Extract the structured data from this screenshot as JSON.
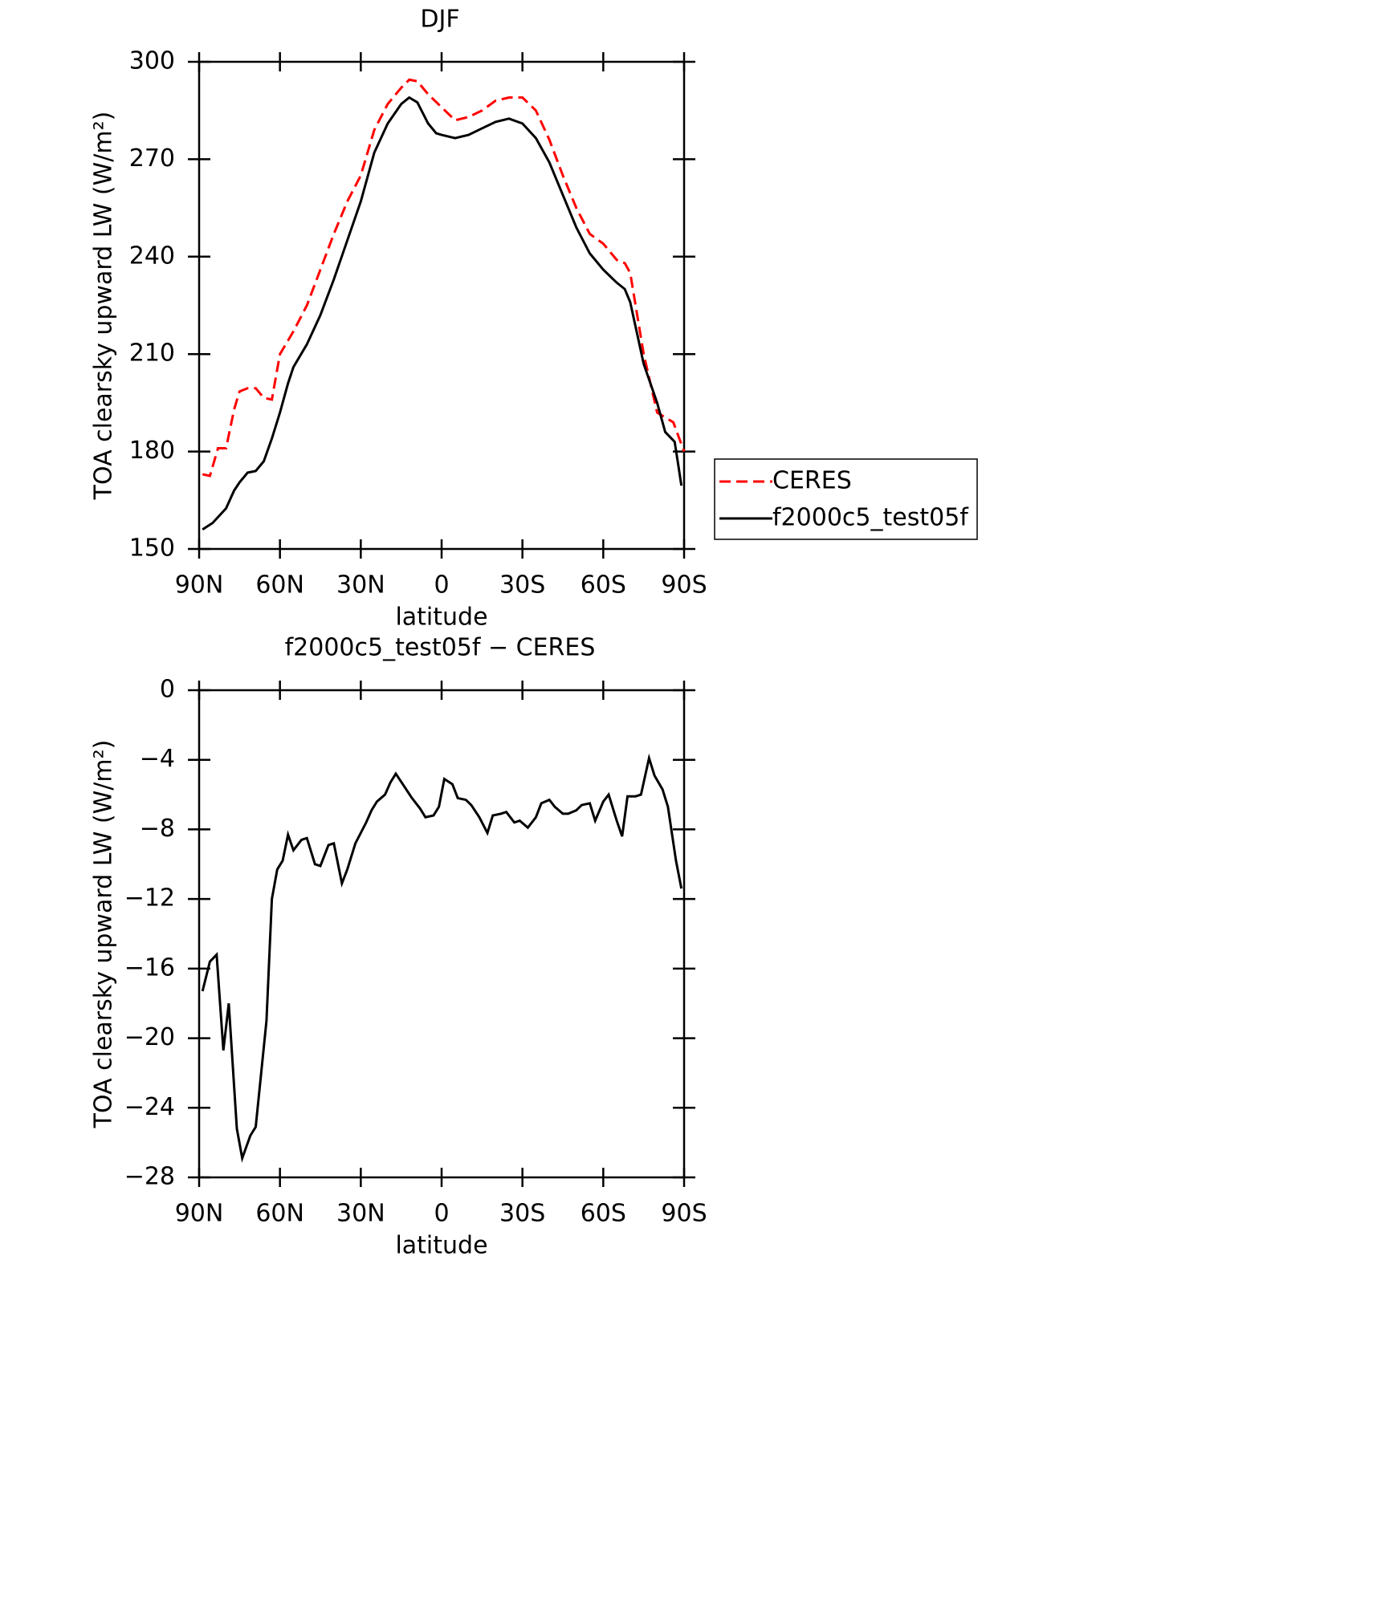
{
  "chart_data": [
    {
      "type": "line",
      "title": "DJF",
      "xlabel": "latitude",
      "ylabel": "TOA clearsky upward LW (W/m²)",
      "xlim": [
        90,
        -90
      ],
      "xticks": [
        {
          "value": 90,
          "label": "90N"
        },
        {
          "value": 60,
          "label": "60N"
        },
        {
          "value": 30,
          "label": "30N"
        },
        0,
        {
          "value": -30,
          "label": "30S"
        },
        {
          "value": -60,
          "label": "60S"
        },
        {
          "value": -90,
          "label": "90S"
        }
      ],
      "ylim": [
        150,
        300
      ],
      "yticks": [
        150,
        180,
        210,
        240,
        270,
        300
      ],
      "legend": "right",
      "series": [
        {
          "name": "CERES",
          "color": "#ff0000",
          "line_style": "dashed",
          "x": [
            88.75,
            86,
            83,
            80,
            77,
            75,
            72,
            69,
            66,
            63,
            60,
            55,
            50,
            45,
            40,
            35,
            30,
            25,
            20,
            15,
            12,
            9,
            5,
            0,
            -5,
            -10,
            -15,
            -20,
            -25,
            -30,
            -35,
            -40,
            -45,
            -50,
            -55,
            -60,
            -65,
            -68,
            -70,
            -75,
            -80,
            -83,
            -86,
            -90
          ],
          "values": [
            173,
            172.5,
            181,
            181,
            193,
            198.5,
            199.5,
            199.5,
            196.5,
            196,
            210,
            217,
            225,
            236,
            247,
            257,
            265,
            279,
            287,
            292,
            294.5,
            294,
            290,
            286,
            282,
            283,
            285,
            288,
            289,
            289,
            285,
            276,
            265,
            255,
            247,
            244,
            239,
            238,
            235,
            210,
            192,
            190.5,
            189,
            180
          ]
        },
        {
          "name": "f2000c5_test05f",
          "color": "#000000",
          "line_style": "solid",
          "x": [
            88.75,
            85,
            80,
            77,
            75,
            72,
            69,
            66,
            63,
            60,
            57,
            55,
            50,
            45,
            40,
            35,
            30,
            25,
            20,
            15,
            12,
            9,
            5,
            2,
            0,
            -5,
            -10,
            -15,
            -20,
            -25,
            -30,
            -35,
            -40,
            -45,
            -50,
            -55,
            -60,
            -65,
            -68,
            -70,
            -75,
            -80,
            -83,
            -86.5,
            -88,
            -89
          ],
          "values": [
            156,
            158,
            162.5,
            168,
            170.5,
            173.5,
            174,
            177,
            184,
            192,
            201,
            206,
            213,
            222,
            233,
            245,
            257,
            272,
            281,
            287,
            289,
            287.5,
            281,
            278,
            277.5,
            276.5,
            277.5,
            279.5,
            281.5,
            282.5,
            281,
            276.5,
            269,
            259,
            249,
            241,
            236,
            232,
            230,
            226,
            207,
            195,
            186,
            183,
            175,
            169.5
          ]
        }
      ]
    },
    {
      "type": "line",
      "title": "f2000c5_test05f − CERES",
      "xlabel": "latitude",
      "ylabel": "TOA clearsky upward LW (W/m²)",
      "xlim": [
        90,
        -90
      ],
      "xticks": [
        {
          "value": 90,
          "label": "90N"
        },
        {
          "value": 60,
          "label": "60N"
        },
        {
          "value": 30,
          "label": "30N"
        },
        0,
        {
          "value": -30,
          "label": "30S"
        },
        {
          "value": -60,
          "label": "60S"
        },
        {
          "value": -90,
          "label": "90S"
        }
      ],
      "ylim": [
        -28,
        0
      ],
      "yticks": [
        {
          "value": -28,
          "label": "−28"
        },
        {
          "value": -24,
          "label": "−24"
        },
        {
          "value": -20,
          "label": "−20"
        },
        {
          "value": -16,
          "label": "−16"
        },
        {
          "value": -12,
          "label": "−12"
        },
        {
          "value": -8,
          "label": "−8"
        },
        {
          "value": -4,
          "label": "−4"
        },
        0
      ],
      "color": "#000000",
      "x": [
        88.75,
        86,
        83.5,
        81,
        79,
        76,
        74,
        71,
        69,
        65,
        63,
        61,
        59,
        57,
        55,
        52,
        50,
        47,
        45,
        42,
        40,
        37,
        35,
        32,
        28,
        26,
        24,
        21,
        19,
        17,
        14,
        11,
        8,
        6,
        3,
        1,
        -1,
        -4,
        -6,
        -9,
        -11,
        -14,
        -17,
        -19,
        -22,
        -24,
        -27,
        -29,
        -32,
        -35,
        -37,
        -40,
        -42,
        -45,
        -47,
        -50,
        -52,
        -55,
        -57,
        -60,
        -62,
        -65,
        -67,
        -69,
        -72,
        -74,
        -77,
        -79,
        -82,
        -84,
        -87,
        -89
      ],
      "values": [
        -17.3,
        -15.6,
        -15.2,
        -20.7,
        -18,
        -25.2,
        -26.9,
        -25.6,
        -25.1,
        -19,
        -12,
        -10.3,
        -9.8,
        -8.3,
        -9.2,
        -8.6,
        -8.5,
        -10,
        -10.1,
        -8.9,
        -8.8,
        -11.1,
        -10.3,
        -8.8,
        -7.6,
        -6.9,
        -6.4,
        -6,
        -5.3,
        -4.8,
        -5.5,
        -6.2,
        -6.8,
        -7.3,
        -7.2,
        -6.7,
        -5.1,
        -5.4,
        -6.2,
        -6.3,
        -6.6,
        -7.3,
        -8.2,
        -7.2,
        -7.1,
        -7,
        -7.6,
        -7.5,
        -7.9,
        -7.3,
        -6.5,
        -6.3,
        -6.7,
        -7.1,
        -7.1,
        -6.9,
        -6.6,
        -6.5,
        -7.5,
        -6.4,
        -6,
        -7.5,
        -8.4,
        -6.1,
        -6.1,
        -6,
        -3.9,
        -4.9,
        -5.7,
        -6.7,
        -9.8,
        -11.4
      ]
    }
  ]
}
